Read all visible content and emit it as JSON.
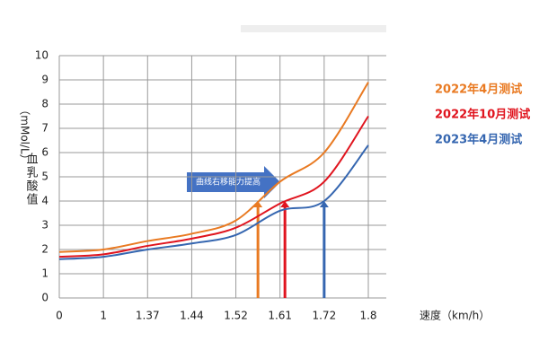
{
  "chart_data": {
    "type": "line",
    "ylabel": "（mMol/L）",
    "ylabel2": "血乳酸值",
    "xlabel": "速度（km/h）",
    "annotation": "曲线右移能力提高",
    "categories": [
      "0",
      "1",
      "1.37",
      "1.44",
      "1.52",
      "1.61",
      "1.72",
      "1.8"
    ],
    "series": [
      {
        "name": "2022年4月测试",
        "color": "#e97a22",
        "values": [
          1.9,
          2.0,
          2.35,
          2.65,
          3.2,
          4.8,
          6.0,
          8.9
        ]
      },
      {
        "name": "2022年10月测试",
        "color": "#e0141e",
        "values": [
          1.7,
          1.8,
          2.15,
          2.45,
          2.9,
          3.9,
          4.8,
          7.5
        ]
      },
      {
        "name": "2023年4月测试",
        "color": "#3566b0",
        "values": [
          1.6,
          1.7,
          2.0,
          2.25,
          2.6,
          3.6,
          4.0,
          6.3
        ]
      }
    ],
    "threshold": 4,
    "ylim": [
      0,
      10
    ],
    "yticks": [
      0,
      1,
      2,
      3,
      4,
      5,
      6,
      7,
      8,
      9,
      10
    ],
    "grid": true
  }
}
